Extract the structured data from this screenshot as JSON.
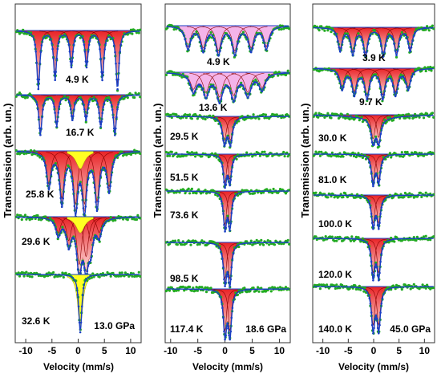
{
  "figure": {
    "colors": {
      "data_points": "#22aa22",
      "fit_line": "#1a3fc4",
      "fill_main": "#e8171a",
      "fill_light": "#ffe2e2",
      "fill_yellow": "#ffff22",
      "fill_pink": "#f4b0e8"
    }
  },
  "chart_data": [
    {
      "type": "scatter",
      "title": "",
      "xlabel": "Velocity (mm/s)",
      "ylabel": "Transmission (arb. un.)",
      "xlim": [
        -12,
        12
      ],
      "x_ticks": [
        -10,
        -5,
        0,
        5,
        10
      ],
      "pressure_label": "13.0 GPa",
      "spectra": [
        {
          "temperature": "4.9 K",
          "kind": "sextet",
          "lines": [
            -7.6,
            -4.4,
            -1.3,
            1.6,
            4.6,
            7.5
          ],
          "depths": [
            0.9,
            0.75,
            0.55,
            0.55,
            0.75,
            0.9
          ],
          "width": 0.35
        },
        {
          "temperature": "16.7 K",
          "kind": "sextet",
          "lines": [
            -7.2,
            -4.1,
            -1.1,
            1.5,
            4.3,
            7.0
          ],
          "depths": [
            0.9,
            0.7,
            0.55,
            0.55,
            0.7,
            0.9
          ],
          "width": 0.35
        },
        {
          "temperature": "25.8 K",
          "kind": "sextet",
          "lines": [
            -5.6,
            -3.1,
            -0.5,
            1.2,
            3.6,
            5.9
          ],
          "depths": [
            0.55,
            0.8,
            0.9,
            0.9,
            0.85,
            0.6
          ],
          "width": 0.5,
          "yellow": true
        },
        {
          "temperature": "29.6 K",
          "kind": "sextet",
          "lines": [
            -3.8,
            -1.8,
            0.2,
            1.5,
            2.4,
            4.0
          ],
          "depths": [
            0.3,
            0.45,
            0.9,
            0.75,
            0.45,
            0.3
          ],
          "width": 0.55,
          "yellow": true
        },
        {
          "temperature": "32.6 K",
          "kind": "single",
          "lines": [
            0.4
          ],
          "depths": [
            1.0
          ],
          "width": 0.35,
          "yellow": true
        }
      ]
    },
    {
      "type": "scatter",
      "title": "",
      "xlabel": "Velocity (mm/s)",
      "ylabel": "Transmission (arb. un.)",
      "xlim": [
        -11,
        12
      ],
      "x_ticks": [
        -10,
        -5,
        0,
        5,
        10
      ],
      "pressure_label": "18.6 GPa",
      "spectra": [
        {
          "temperature": "4.9 K",
          "kind": "sextet",
          "lines": [
            -6.8,
            -4.0,
            -1.2,
            1.8,
            4.8,
            7.6
          ],
          "depths": [
            0.7,
            0.75,
            0.85,
            0.85,
            0.75,
            0.7
          ],
          "width": 0.6,
          "pink": true
        },
        {
          "temperature": "13.6 K",
          "kind": "sextet",
          "lines": [
            -5.8,
            -3.5,
            -1.0,
            1.6,
            4.2,
            6.8
          ],
          "depths": [
            0.55,
            0.65,
            0.8,
            0.75,
            0.65,
            0.5
          ],
          "width": 0.7,
          "pink": true
        },
        {
          "temperature": "29.5 K",
          "kind": "doublet",
          "lines": [
            -0.1,
            1.0
          ],
          "depths": [
            0.85,
            0.85
          ],
          "width": 0.45
        },
        {
          "temperature": "51.5 K",
          "kind": "doublet",
          "lines": [
            0.0,
            0.9
          ],
          "depths": [
            0.95,
            0.85
          ],
          "width": 0.35
        },
        {
          "temperature": "73.6 K",
          "kind": "doublet",
          "lines": [
            0.0,
            0.9
          ],
          "depths": [
            0.95,
            0.9
          ],
          "width": 0.35
        },
        {
          "temperature": "98.5 K",
          "kind": "doublet",
          "lines": [
            0.0,
            0.9
          ],
          "depths": [
            0.95,
            0.95
          ],
          "width": 0.35
        },
        {
          "temperature": "117.4 K",
          "kind": "doublet",
          "lines": [
            0.0,
            0.9
          ],
          "depths": [
            0.95,
            0.95
          ],
          "width": 0.35
        }
      ]
    },
    {
      "type": "scatter",
      "title": "",
      "xlabel": "Velocity (mm/s)",
      "ylabel": "Transmission (arb. un.)",
      "xlim": [
        -12,
        12
      ],
      "x_ticks": [
        -10,
        -5,
        0,
        5,
        10
      ],
      "pressure_label": "45.0 GPa",
      "spectra": [
        {
          "temperature": "3.9 K",
          "kind": "sextet",
          "lines": [
            -6.6,
            -4.1,
            -1.6,
            1.9,
            4.5,
            7.2
          ],
          "depths": [
            0.75,
            0.85,
            0.9,
            0.9,
            0.85,
            0.75
          ],
          "width": 0.5
        },
        {
          "temperature": "9.7 K",
          "kind": "sextet",
          "lines": [
            -6.2,
            -3.8,
            -1.3,
            1.8,
            4.3,
            6.8
          ],
          "depths": [
            0.6,
            0.75,
            0.85,
            0.85,
            0.75,
            0.6
          ],
          "width": 0.55
        },
        {
          "temperature": "30.0 K",
          "kind": "doublet+broad",
          "lines": [
            -0.1,
            1.0
          ],
          "depths": [
            0.9,
            0.85
          ],
          "width": 0.45
        },
        {
          "temperature": "81.0 K",
          "kind": "doublet",
          "lines": [
            -0.1,
            1.0
          ],
          "depths": [
            0.9,
            0.85
          ],
          "width": 0.4
        },
        {
          "temperature": "100.0 K",
          "kind": "doublet",
          "lines": [
            -0.1,
            1.0
          ],
          "depths": [
            0.9,
            0.9
          ],
          "width": 0.4
        },
        {
          "temperature": "120.0 K",
          "kind": "doublet",
          "lines": [
            -0.1,
            1.0
          ],
          "depths": [
            0.9,
            0.9
          ],
          "width": 0.4
        },
        {
          "temperature": "140.0 K",
          "kind": "doublet",
          "lines": [
            -0.1,
            1.0
          ],
          "depths": [
            0.9,
            0.9
          ],
          "width": 0.4
        }
      ]
    }
  ]
}
